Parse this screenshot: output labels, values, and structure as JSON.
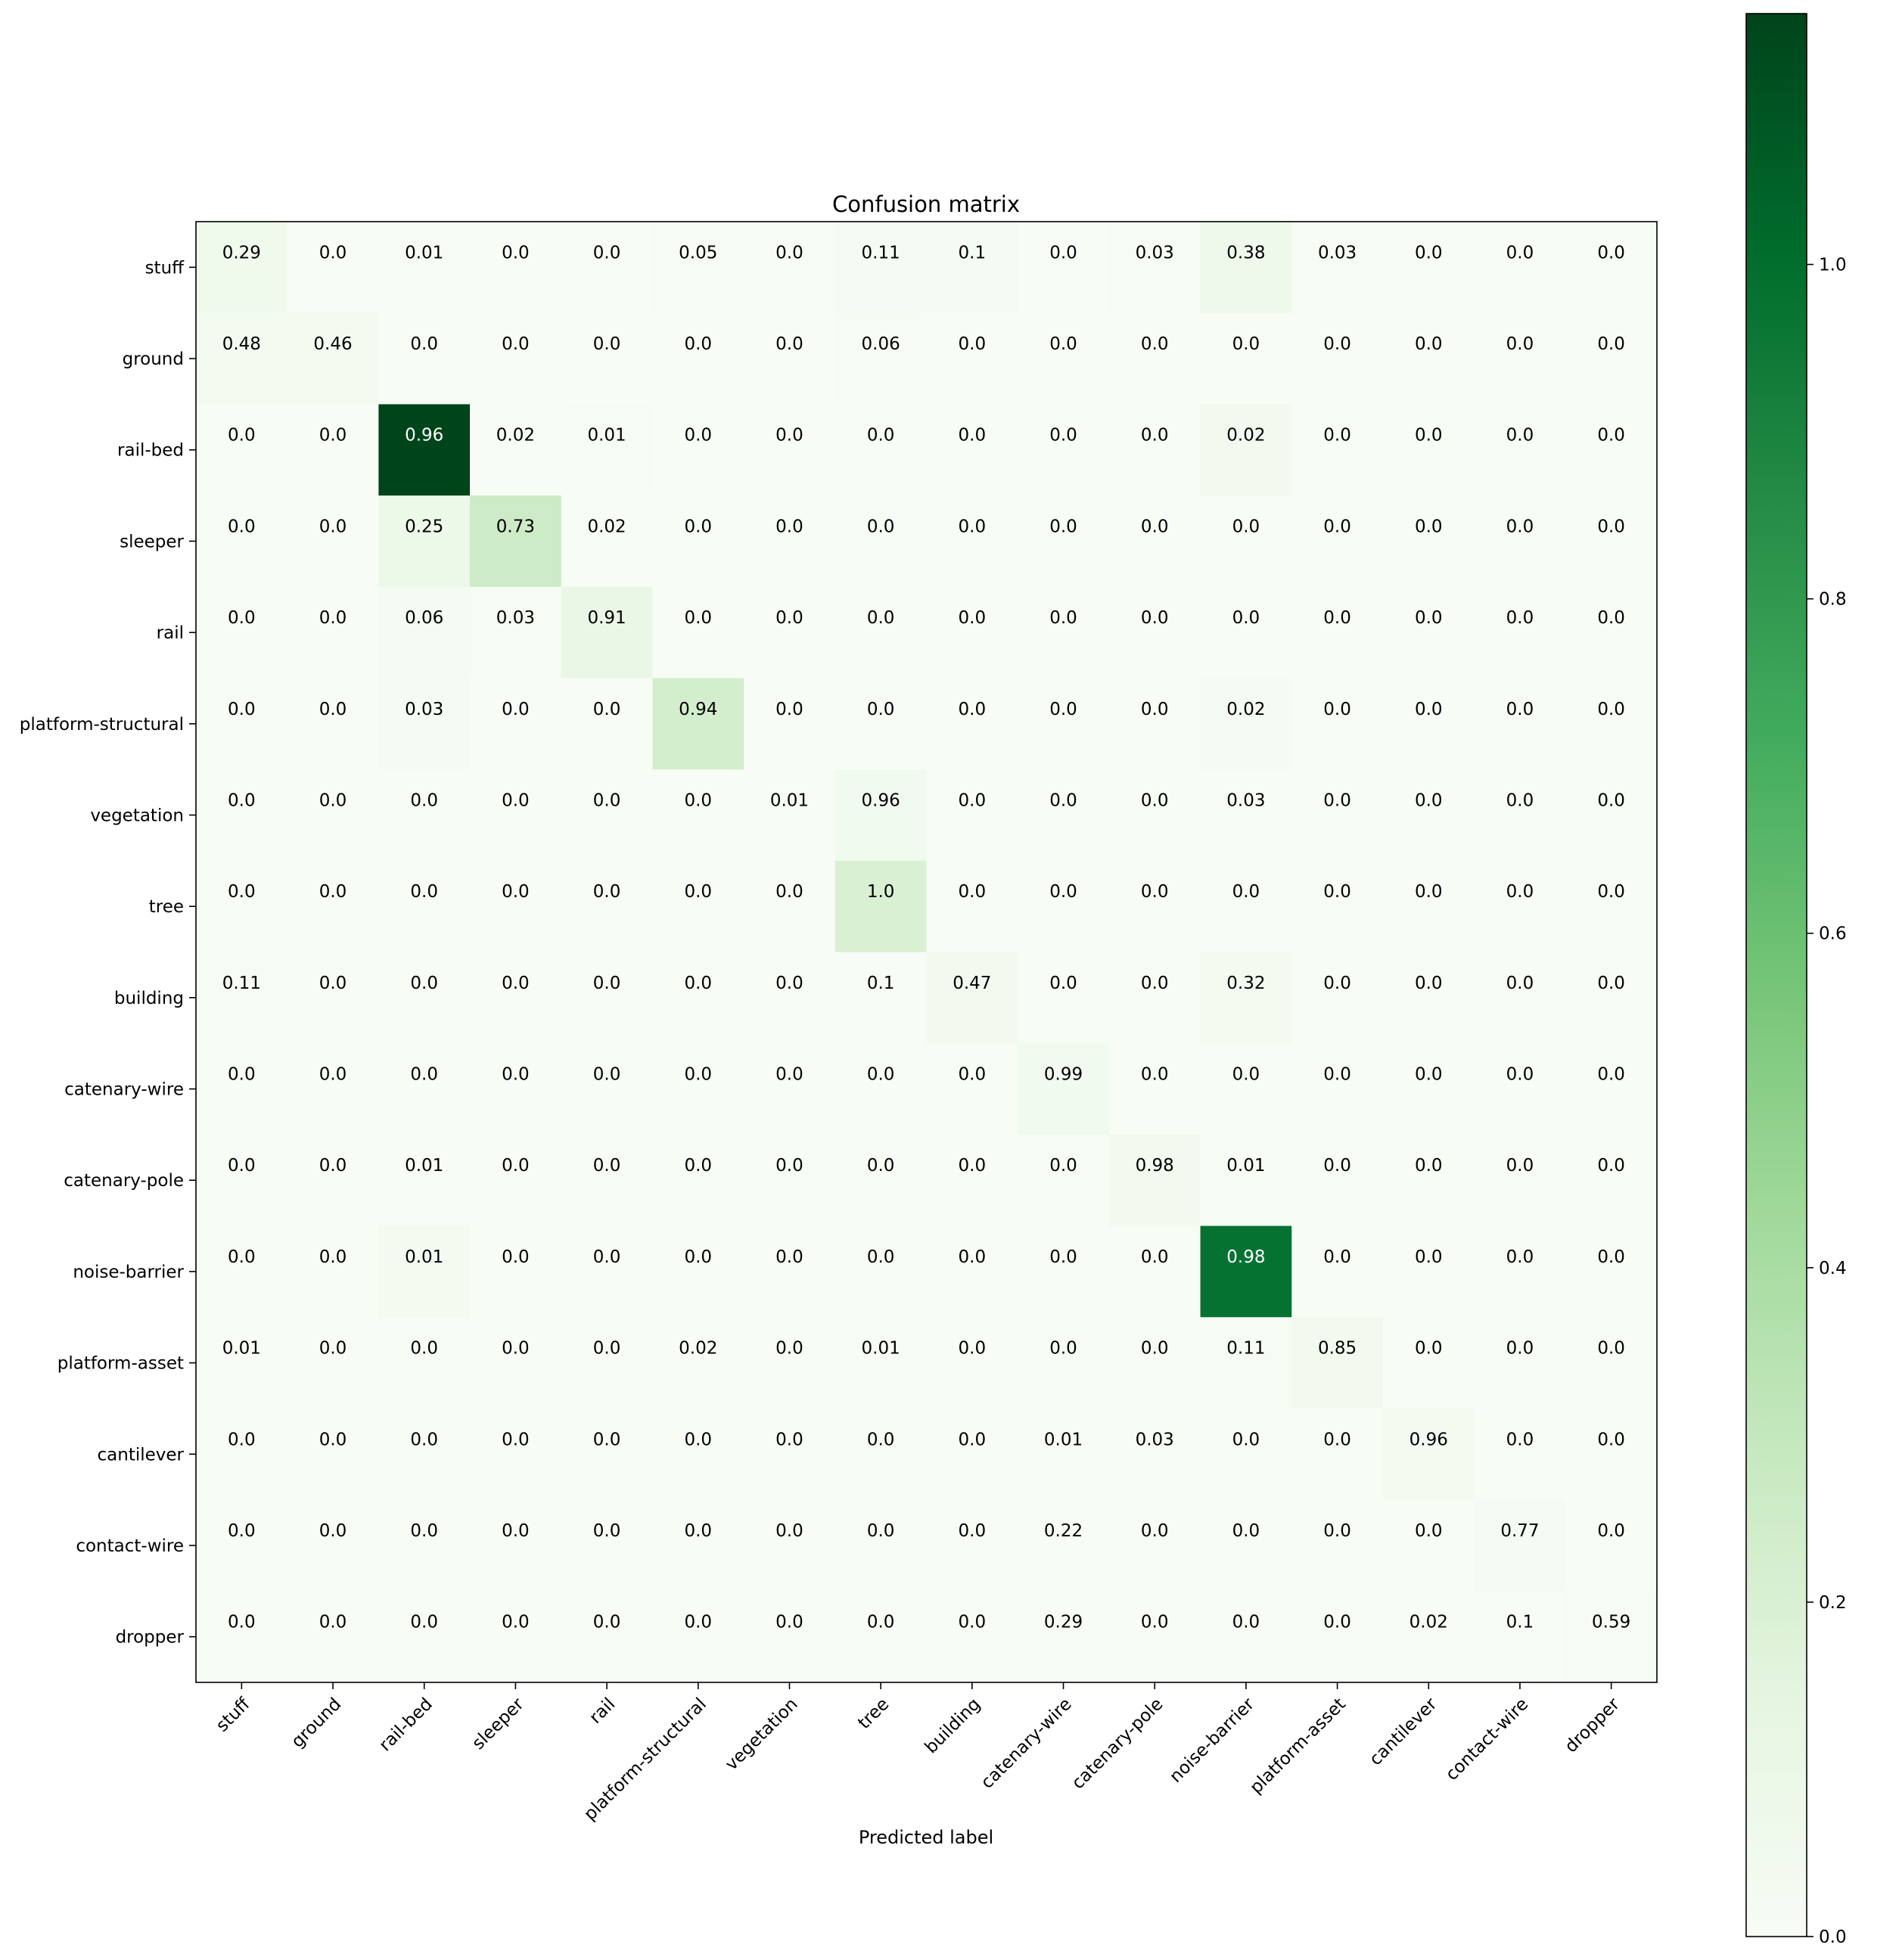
{
  "chart_data": {
    "type": "heatmap",
    "title": "Confusion matrix",
    "xlabel": "Predicted label",
    "ylabel": "",
    "row_labels": [
      "stuff",
      "ground",
      "rail-bed",
      "sleeper",
      "rail",
      "platform-structural",
      "vegetation",
      "tree",
      "building",
      "catenary-wire",
      "catenary-pole",
      "noise-barrier",
      "platform-asset",
      "cantilever",
      "contact-wire",
      "dropper"
    ],
    "col_labels": [
      "stuff",
      "ground",
      "rail-bed",
      "sleeper",
      "rail",
      "platform-structural",
      "vegetation",
      "tree",
      "building",
      "catenary-wire",
      "catenary-pole",
      "noise-barrier",
      "platform-asset",
      "cantilever",
      "contact-wire",
      "dropper"
    ],
    "cell_labels": [
      [
        "0.29",
        "0.0",
        "0.01",
        "0.0",
        "0.0",
        "0.05",
        "0.0",
        "0.11",
        "0.1",
        "0.0",
        "0.03",
        "0.38",
        "0.03",
        "0.0",
        "0.0",
        "0.0"
      ],
      [
        "0.48",
        "0.46",
        "0.0",
        "0.0",
        "0.0",
        "0.0",
        "0.0",
        "0.06",
        "0.0",
        "0.0",
        "0.0",
        "0.0",
        "0.0",
        "0.0",
        "0.0",
        "0.0"
      ],
      [
        "0.0",
        "0.0",
        "0.96",
        "0.02",
        "0.01",
        "0.0",
        "0.0",
        "0.0",
        "0.0",
        "0.0",
        "0.0",
        "0.02",
        "0.0",
        "0.0",
        "0.0",
        "0.0"
      ],
      [
        "0.0",
        "0.0",
        "0.25",
        "0.73",
        "0.02",
        "0.0",
        "0.0",
        "0.0",
        "0.0",
        "0.0",
        "0.0",
        "0.0",
        "0.0",
        "0.0",
        "0.0",
        "0.0"
      ],
      [
        "0.0",
        "0.0",
        "0.06",
        "0.03",
        "0.91",
        "0.0",
        "0.0",
        "0.0",
        "0.0",
        "0.0",
        "0.0",
        "0.0",
        "0.0",
        "0.0",
        "0.0",
        "0.0"
      ],
      [
        "0.0",
        "0.0",
        "0.03",
        "0.0",
        "0.0",
        "0.94",
        "0.0",
        "0.0",
        "0.0",
        "0.0",
        "0.0",
        "0.02",
        "0.0",
        "0.0",
        "0.0",
        "0.0"
      ],
      [
        "0.0",
        "0.0",
        "0.0",
        "0.0",
        "0.0",
        "0.0",
        "0.01",
        "0.96",
        "0.0",
        "0.0",
        "0.0",
        "0.03",
        "0.0",
        "0.0",
        "0.0",
        "0.0"
      ],
      [
        "0.0",
        "0.0",
        "0.0",
        "0.0",
        "0.0",
        "0.0",
        "0.0",
        "1.0",
        "0.0",
        "0.0",
        "0.0",
        "0.0",
        "0.0",
        "0.0",
        "0.0",
        "0.0"
      ],
      [
        "0.11",
        "0.0",
        "0.0",
        "0.0",
        "0.0",
        "0.0",
        "0.0",
        "0.1",
        "0.47",
        "0.0",
        "0.0",
        "0.32",
        "0.0",
        "0.0",
        "0.0",
        "0.0"
      ],
      [
        "0.0",
        "0.0",
        "0.0",
        "0.0",
        "0.0",
        "0.0",
        "0.0",
        "0.0",
        "0.0",
        "0.99",
        "0.0",
        "0.0",
        "0.0",
        "0.0",
        "0.0",
        "0.0"
      ],
      [
        "0.0",
        "0.0",
        "0.01",
        "0.0",
        "0.0",
        "0.0",
        "0.0",
        "0.0",
        "0.0",
        "0.0",
        "0.98",
        "0.01",
        "0.0",
        "0.0",
        "0.0",
        "0.0"
      ],
      [
        "0.0",
        "0.0",
        "0.01",
        "0.0",
        "0.0",
        "0.0",
        "0.0",
        "0.0",
        "0.0",
        "0.0",
        "0.0",
        "0.98",
        "0.0",
        "0.0",
        "0.0",
        "0.0"
      ],
      [
        "0.01",
        "0.0",
        "0.0",
        "0.0",
        "0.0",
        "0.02",
        "0.0",
        "0.01",
        "0.0",
        "0.0",
        "0.0",
        "0.11",
        "0.85",
        "0.0",
        "0.0",
        "0.0"
      ],
      [
        "0.0",
        "0.0",
        "0.0",
        "0.0",
        "0.0",
        "0.0",
        "0.0",
        "0.0",
        "0.0",
        "0.01",
        "0.03",
        "0.0",
        "0.0",
        "0.96",
        "0.0",
        "0.0"
      ],
      [
        "0.0",
        "0.0",
        "0.0",
        "0.0",
        "0.0",
        "0.0",
        "0.0",
        "0.0",
        "0.0",
        "0.22",
        "0.0",
        "0.0",
        "0.0",
        "0.0",
        "0.77",
        "0.0"
      ],
      [
        "0.0",
        "0.0",
        "0.0",
        "0.0",
        "0.0",
        "0.0",
        "0.0",
        "0.0",
        "0.0",
        "0.29",
        "0.0",
        "0.0",
        "0.0",
        "0.02",
        "0.1",
        "0.59"
      ]
    ],
    "cell_color_values": [
      [
        0.06,
        0.0,
        0.01,
        0.0,
        0.0,
        0.01,
        0.0,
        0.02,
        0.02,
        0.0,
        0.01,
        0.07,
        0.01,
        0.0,
        0.0,
        0.0
      ],
      [
        0.03,
        0.03,
        0.0,
        0.0,
        0.0,
        0.0,
        0.0,
        0.01,
        0.0,
        0.0,
        0.0,
        0.0,
        0.0,
        0.0,
        0.0,
        0.0
      ],
      [
        0.0,
        0.0,
        1.15,
        0.0,
        0.01,
        0.0,
        0.0,
        0.0,
        0.0,
        0.0,
        0.0,
        0.04,
        0.0,
        0.0,
        0.0,
        0.0
      ],
      [
        0.0,
        0.0,
        0.09,
        0.26,
        0.0,
        0.0,
        0.0,
        0.0,
        0.0,
        0.0,
        0.0,
        0.0,
        0.0,
        0.0,
        0.0,
        0.0
      ],
      [
        0.0,
        0.0,
        0.02,
        0.01,
        0.1,
        0.0,
        0.0,
        0.0,
        0.0,
        0.0,
        0.0,
        0.0,
        0.0,
        0.0,
        0.0,
        0.0
      ],
      [
        0.0,
        0.0,
        0.02,
        0.0,
        0.0,
        0.23,
        0.0,
        0.0,
        0.0,
        0.0,
        0.0,
        0.02,
        0.0,
        0.0,
        0.0,
        0.0
      ],
      [
        0.0,
        0.0,
        0.0,
        0.0,
        0.0,
        0.0,
        0.0,
        0.05,
        0.0,
        0.0,
        0.0,
        0.0,
        0.0,
        0.0,
        0.0,
        0.0
      ],
      [
        0.0,
        0.0,
        0.0,
        0.0,
        0.0,
        0.0,
        0.0,
        0.2,
        0.0,
        0.0,
        0.0,
        0.0,
        0.0,
        0.0,
        0.0,
        0.0
      ],
      [
        0.01,
        0.0,
        0.0,
        0.0,
        0.0,
        0.0,
        0.0,
        0.0,
        0.04,
        0.0,
        0.0,
        0.03,
        0.0,
        0.0,
        0.0,
        0.0
      ],
      [
        0.0,
        0.0,
        0.0,
        0.0,
        0.0,
        0.0,
        0.0,
        0.0,
        0.0,
        0.05,
        0.0,
        0.0,
        0.0,
        0.0,
        0.0,
        0.0
      ],
      [
        0.0,
        0.0,
        0.0,
        0.0,
        0.0,
        0.0,
        0.0,
        0.0,
        0.0,
        0.0,
        0.04,
        0.0,
        0.0,
        0.0,
        0.0,
        0.0
      ],
      [
        0.0,
        0.0,
        0.03,
        0.0,
        0.0,
        0.0,
        0.0,
        0.0,
        0.0,
        0.0,
        0.0,
        0.98,
        0.0,
        0.0,
        0.0,
        0.0
      ],
      [
        0.0,
        0.0,
        0.0,
        0.0,
        0.0,
        0.0,
        0.0,
        0.0,
        0.0,
        0.0,
        0.0,
        0.01,
        0.04,
        0.0,
        0.0,
        0.0
      ],
      [
        0.0,
        0.0,
        0.0,
        0.0,
        0.0,
        0.0,
        0.0,
        0.0,
        0.0,
        0.0,
        0.0,
        0.0,
        0.0,
        0.03,
        0.0,
        0.0
      ],
      [
        0.0,
        0.0,
        0.0,
        0.0,
        0.0,
        0.0,
        0.0,
        0.0,
        0.0,
        0.0,
        0.0,
        0.0,
        0.0,
        0.0,
        0.02,
        0.0
      ],
      [
        0.0,
        0.0,
        0.0,
        0.0,
        0.0,
        0.0,
        0.0,
        0.0,
        0.0,
        0.0,
        0.0,
        0.0,
        0.0,
        0.0,
        0.0,
        0.01
      ]
    ],
    "colormap": "Greens",
    "colormap_stops": [
      "#f7fcf5",
      "#e5f5e0",
      "#c7e9c0",
      "#a1d99b",
      "#74c476",
      "#41ab5d",
      "#238b45",
      "#006d2c",
      "#00441b"
    ],
    "color_range": [
      0,
      1.15
    ],
    "colorbar_ticks": [
      "0.0",
      "0.2",
      "0.4",
      "0.6",
      "0.8",
      "1.0"
    ],
    "colorbar_tick_values": [
      0,
      0.2,
      0.4,
      0.6,
      0.8,
      1.0
    ],
    "grid": false,
    "text_color_dark": "#000000",
    "text_color_light": "#ffffff"
  }
}
